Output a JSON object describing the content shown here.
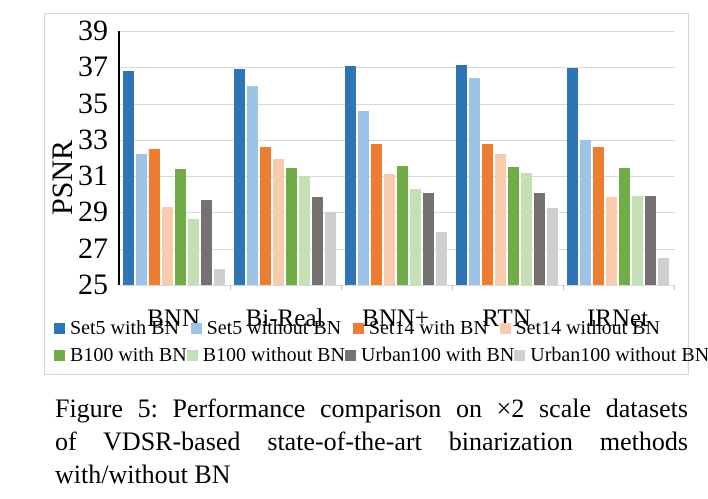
{
  "figure": {
    "caption_lines": [
      "Figure 5: Performance comparison on ×2 scale datasets",
      "of VDSR-based state-of-the-art binarization methods",
      "with/without BN"
    ]
  },
  "chart_data": {
    "type": "bar",
    "title": "",
    "xlabel": "",
    "ylabel": "PSNR",
    "ylim": [
      25,
      39
    ],
    "yticks": [
      39,
      37,
      35,
      33,
      31,
      29,
      27,
      25
    ],
    "grid": true,
    "legend_position": "bottom-two-rows",
    "categories": [
      "BNN",
      "Bi-Real",
      "BNN+",
      "RTN",
      "IRNet"
    ],
    "series": [
      {
        "name": "Set5 with BN",
        "color": "#2E75B6",
        "values": [
          36.8,
          36.9,
          37.1,
          37.15,
          36.95
        ]
      },
      {
        "name": "Set5 without BN",
        "color": "#9DC3E6",
        "values": [
          32.2,
          35.95,
          34.6,
          36.4,
          33.0
        ]
      },
      {
        "name": "Set14 with BN",
        "color": "#ED7D31",
        "values": [
          32.5,
          32.6,
          32.8,
          32.75,
          32.6
        ]
      },
      {
        "name": "Set14 without BN",
        "color": "#F8CBAD",
        "values": [
          29.3,
          31.95,
          31.1,
          32.2,
          29.85
        ]
      },
      {
        "name": "B100 with BN",
        "color": "#70AD47",
        "values": [
          31.4,
          31.45,
          31.55,
          31.5,
          31.45
        ]
      },
      {
        "name": "B100 without BN",
        "color": "#C5E0B4",
        "values": [
          28.65,
          31.0,
          30.3,
          31.2,
          29.9
        ]
      },
      {
        "name": "Urban100 with BN",
        "color": "#767171",
        "values": [
          29.7,
          29.85,
          30.05,
          30.05,
          29.9
        ]
      },
      {
        "name": "Urban100 without BN",
        "color": "#D0CECE",
        "values": [
          25.9,
          29.05,
          27.9,
          29.25,
          26.5
        ]
      }
    ]
  }
}
